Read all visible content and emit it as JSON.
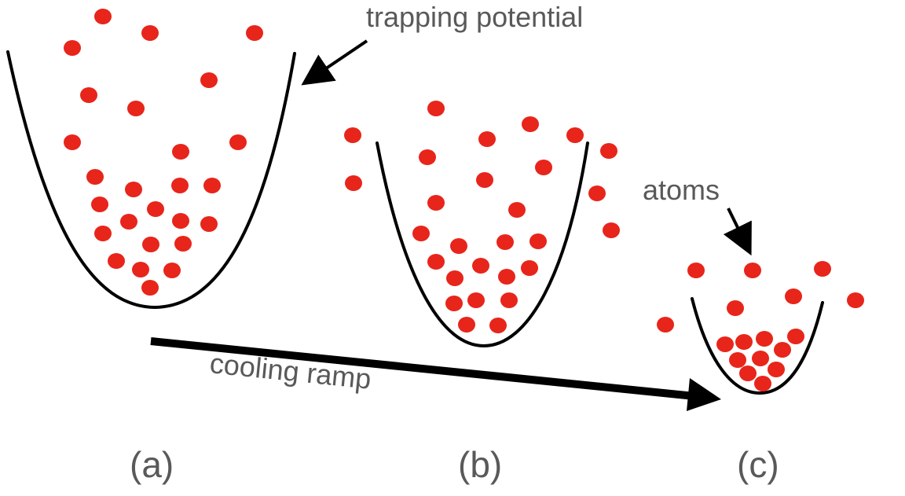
{
  "labels": {
    "trapping_potential": "trapping potential",
    "atoms": "atoms",
    "cooling_ramp": "cooling ramp",
    "panel_a": "(a)",
    "panel_b": "(b)",
    "panel_c": "(c)"
  },
  "colors": {
    "atom": "#e8251b",
    "well": "#000000",
    "text": "#595959"
  }
}
